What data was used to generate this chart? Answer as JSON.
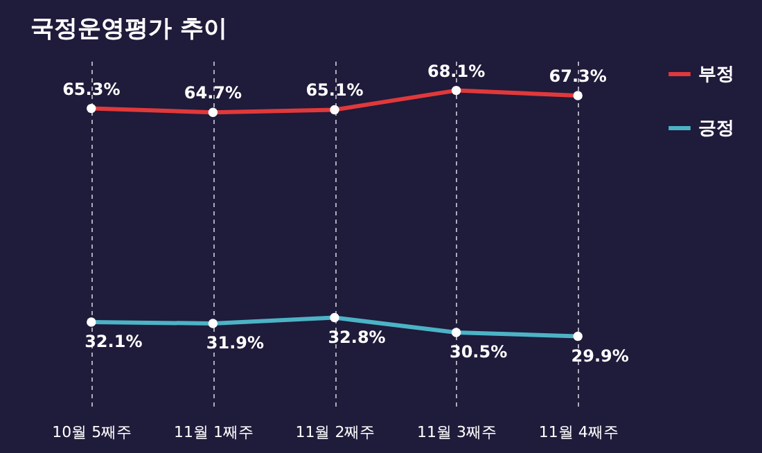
{
  "chart_data": {
    "type": "line",
    "title": "국정운영평가 추이",
    "categories": [
      "10월 5째주",
      "11월 1째주",
      "11월 2째주",
      "11월 3째주",
      "11월 4째주"
    ],
    "series": [
      {
        "name": "부정",
        "color": "#e0393b",
        "values": [
          65.3,
          64.7,
          65.1,
          68.1,
          67.3
        ],
        "value_labels": [
          "65.3%",
          "64.7%",
          "65.1%",
          "68.1%",
          "67.3%"
        ]
      },
      {
        "name": "긍정",
        "color": "#4cb3c6",
        "values": [
          32.1,
          31.9,
          32.8,
          30.5,
          29.9
        ],
        "value_labels": [
          "32.1%",
          "31.9%",
          "32.8%",
          "30.5%",
          "29.9%"
        ]
      }
    ],
    "marker": "circle",
    "grid": "x",
    "legend": "right",
    "line_style": "solid"
  }
}
